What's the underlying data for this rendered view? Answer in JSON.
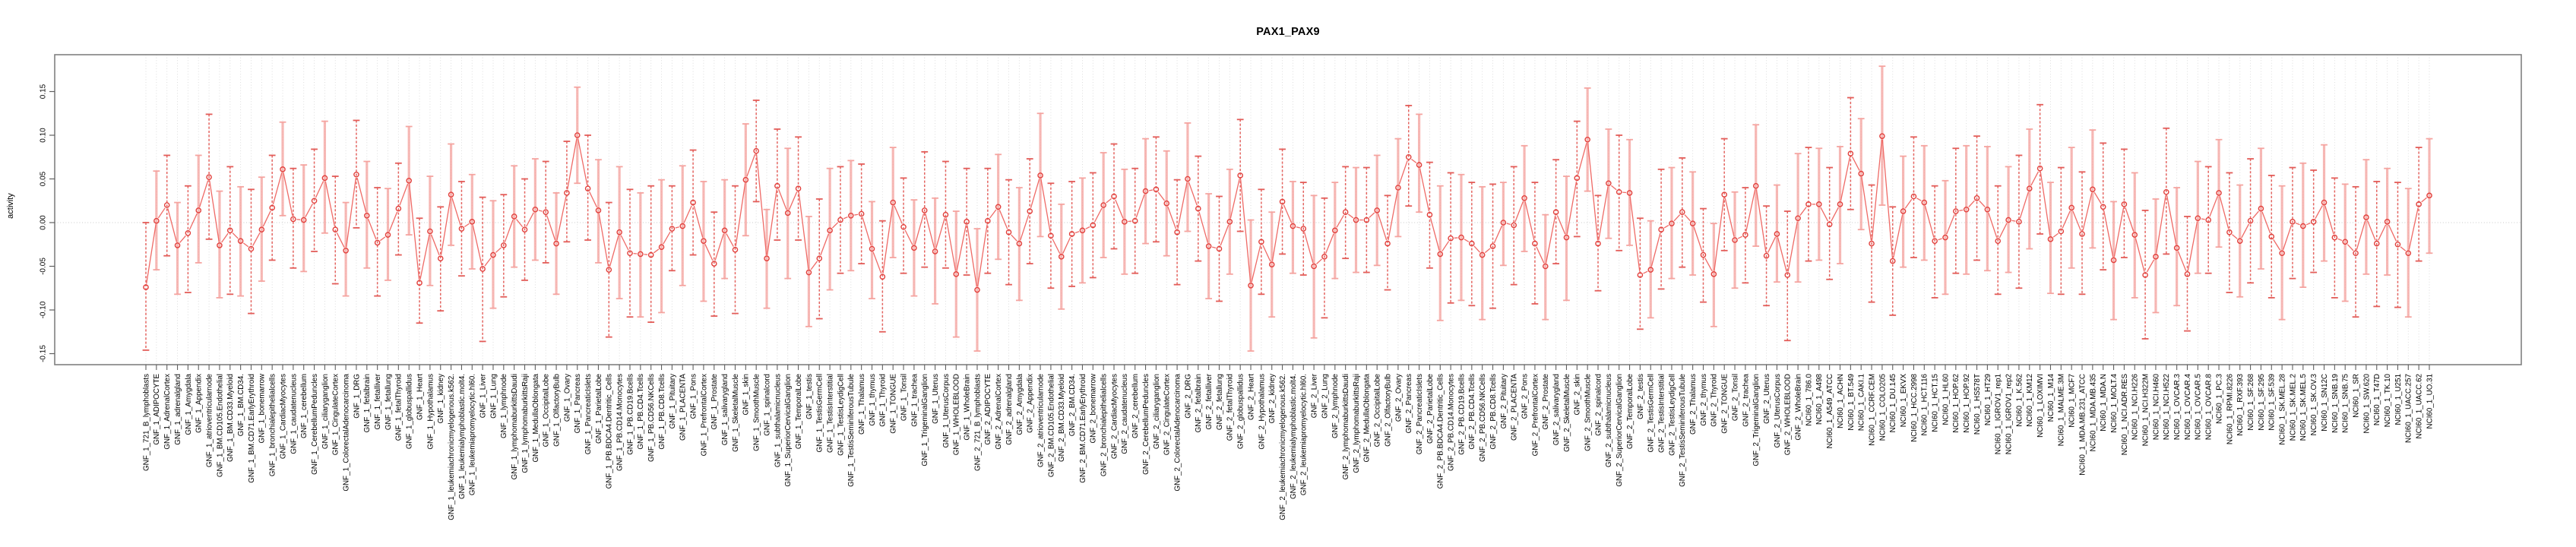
{
  "title": "PAX1_PAX9",
  "axis": {
    "ylabel": "activity",
    "yticks": [
      "0.15",
      "0.10",
      "0.05",
      "0.00",
      "-0.05",
      "-0.10",
      "-0.15"
    ],
    "ytick_values": [
      0.15,
      0.1,
      0.05,
      0.0,
      -0.05,
      -0.1,
      -0.15
    ]
  },
  "colors": {
    "point": "#e2403c",
    "line": "#ef6a66",
    "errorbar_light": "#f4a09c",
    "errorbar_dashed": "#e25450",
    "grid": "#d9d9d9",
    "zero_line": "#c9c9c9",
    "box": "#808080",
    "tick": "#606060",
    "text": "#000000"
  },
  "chart_data": {
    "type": "line",
    "subtype": "errorbar-series",
    "title": "PAX1_PAX9",
    "xlabel": "",
    "ylabel": "activity",
    "ylim": [
      -0.163,
      0.192
    ],
    "yticks": [
      -0.15,
      -0.1,
      -0.05,
      0.0,
      0.05,
      0.1,
      0.15
    ],
    "grid": "vertical dotted gridline per category; horizontal dotted line at y=0",
    "legend": "none",
    "point_style": "open-circle",
    "error_bars": true,
    "categories": [
      "GNF_1_721_B_lymphoblasts",
      "GNF_1_ADIPOCYTE",
      "GNF_1_AdrenalCortex",
      "GNF_1_adrenalgland",
      "GNF_1_Amygdala",
      "GNF_1_Appendix",
      "GNF_1_atrioventricularnode",
      "GNF_1_BM.CD105.Endothelial",
      "GNF_1_BM.CD33.Myeloid",
      "GNF_1_BM.CD34.",
      "GNF_1_BM.CD71.EarlyErythroid",
      "GNF_1_bonemarrow",
      "GNF_1_bronchialepithelialcells",
      "GNF_1_CardiacMyocytes",
      "GNF_1_caudatenucleus",
      "GNF_1_cerebellum",
      "GNF_1_CerebellumPeduncles",
      "GNF_1_ciliaryganglion",
      "GNF_1_CingulateCortex",
      "GNF_1_ColorectalAdenocarcinoma",
      "GNF_1_DRG",
      "GNF_1_fetalbrain",
      "GNF_1_fetalliver",
      "GNF_1_fetallung",
      "GNF_1_fetalThyroid",
      "GNF_1_globuspallidus",
      "GNF_1_Heart",
      "GNF_1_Hypothalamus",
      "GNF_1_kidney",
      "GNF_1_leukemiachronicmyelogenous.k562.",
      "GNF_1_leukemialymphoblastic.molt4.",
      "GNF_1_leukemiapromyelocytic.hl60.",
      "GNF_1_Liver",
      "GNF_1_Lung",
      "GNF_1_lymphnode",
      "GNF_1_lymphomaburkittsDaudi",
      "GNF_1_lymphomaburkittsRaji",
      "GNF_1_MedullaOblongata",
      "GNF_1_OccipitalLobe",
      "GNF_1_OlfactoryBulb",
      "GNF_1_Ovary",
      "GNF_1_Pancreas",
      "GNF_1_PancreaticIslets",
      "GNF_1_ParietalLobe",
      "GNF_1_PB.BDCA4.Dentritic_Cells",
      "GNF_1_PB.CD14.Monocytes",
      "GNF_1_PB.CD19.Bcells",
      "GNF_1_PB.CD4.Tcells",
      "GNF_1_PB.CD56.NKCells",
      "GNF_1_PB.CD8.Tcells",
      "GNF_1_Pituitary",
      "GNF_1_PLACENTA",
      "GNF_1_Pons",
      "GNF_1_PrefrontalCortex",
      "GNF_1_Prostate",
      "GNF_1_salivarygland",
      "GNF_1_SkeletalMuscle",
      "GNF_1_skin",
      "GNF_1_SmoothMuscle",
      "GNF_1_spinalcord",
      "GNF_1_subthalamicnucleus",
      "GNF_1_SuperiorCervicalGanglion",
      "GNF_1_TemporalLobe",
      "GNF_1_testis",
      "GNF_1_TestisGermCell",
      "GNF_1_TestisInterstitial",
      "GNF_1_TestisLeydigCell",
      "GNF_1_TestisSeminiferousTubule",
      "GNF_1_Thalamus",
      "GNF_1_thymus",
      "GNF_1_Thyroid",
      "GNF_1_TONGUE",
      "GNF_1_Tonsil",
      "GNF_1_trachea",
      "GNF_1_TrigeminalGanglion",
      "GNF_1_Uterus",
      "GNF_1_UterusCorpus",
      "GNF_1_WHOLEBLOOD",
      "GNF_1_WholeBrain",
      "GNF_2_721_B_lymphoblasts",
      "GNF_2_ADIPOCYTE",
      "GNF_2_AdrenalCortex",
      "GNF_2_adrenalgland",
      "GNF_2_Amygdala",
      "GNF_2_Appendix",
      "GNF_2_atrioventricularnode",
      "GNF_2_BM.CD105.Endothelial",
      "GNF_2_BM.CD33.Myeloid",
      "GNF_2_BM.CD34.",
      "GNF_2_BM.CD71.EarlyErythroid",
      "GNF_2_bonemarrow",
      "GNF_2_bronchialepithelialcells",
      "GNF_2_CardiacMyocytes",
      "GNF_2_caudatenucleus",
      "GNF_2_cerebellum",
      "GNF_2_CerebellumPeduncles",
      "GNF_2_ciliaryganglion",
      "GNF_2_CingulateCortex",
      "GNF_2_ColorectalAdenocarcinoma",
      "GNF_2_DRG",
      "GNF_2_fetalbrain",
      "GNF_2_fetalliver",
      "GNF_2_fetallung",
      "GNF_2_fetalThyroid",
      "GNF_2_globuspallidus",
      "GNF_2_Heart",
      "GNF_2_Hypothalamus",
      "GNF_2_kidney",
      "GNF_2_leukemiachronicmyelogenous.k562.",
      "GNF_2_leukemialymphoblastic.molt4.",
      "GNF_2_leukemiapromyelocytic.hl60.",
      "GNF_2_Liver",
      "GNF_2_Lung",
      "GNF_2_lymphnode",
      "GNF_2_lymphomaburkittsDaudi",
      "GNF_2_lymphomaburkittsRaji",
      "GNF_2_MedullaOblongata",
      "GNF_2_OccipitalLobe",
      "GNF_2_OlfactoryBulb",
      "GNF_2_Ovary",
      "GNF_2_Pancreas",
      "GNF_2_PancreaticIslets",
      "GNF_2_ParietalLobe",
      "GNF_2_PB.BDCA4.Dentritic_Cells",
      "GNF_2_PB.CD14.Monocytes",
      "GNF_2_PB.CD19.Bcells",
      "GNF_2_PB.CD4.Tcells",
      "GNF_2_PB.CD56.NKCells",
      "GNF_2_PB.CD8.Tcells",
      "GNF_2_Pituitary",
      "GNF_2_PLACENTA",
      "GNF_2_Pons",
      "GNF_2_PrefrontalCortex",
      "GNF_2_Prostate",
      "GNF_2_salivarygland",
      "GNF_2_SkeletalMuscle",
      "GNF_2_skin",
      "GNF_2_SmoothMuscle",
      "GNF_2_spinalcord",
      "GNF_2_subthalamicnucleus",
      "GNF_2_SuperiorCervicalGanglion",
      "GNF_2_TemporalLobe",
      "GNF_2_testis",
      "GNF_2_TestisGermCell",
      "GNF_2_TestisInterstitial",
      "GNF_2_TestisLeydigCell",
      "GNF_2_TestisSeminiferousTubule",
      "GNF_2_Thalamus",
      "GNF_2_thymus",
      "GNF_2_Thyroid",
      "GNF_2_TONGUE",
      "GNF_2_Tonsil",
      "GNF_2_trachea",
      "GNF_2_TrigeminalGanglion",
      "GNF_2_Uterus",
      "GNF_2_UterusCorpus",
      "GNF_2_WHOLEBLOOD",
      "GNF_2_WholeBrain",
      "NCI60_1_786.0",
      "NCI60_1_A498",
      "NCI60_1_A549_ATCC",
      "NCI60_1_ACHN",
      "NCI60_1_BT.549",
      "NCI60_1_CAKI.1",
      "NCI60_1_CCRF.CEM",
      "NCI60_1_COLO205",
      "NCI60_1_DU.145",
      "NCI60_1_EKVX",
      "NCI60_1_HCC.2998",
      "NCI60_1_HCT.116",
      "NCI60_1_HCT.15",
      "NCI60_1_HL60",
      "NCI60_1_HOP.62",
      "NCI60_1_HOP.92",
      "NCI60_1_HS578T",
      "NCI60_1_HT29",
      "NCI60_1_IGROV1_rep1",
      "NCI60_1_IGROV1_rep2",
      "NCI60_1_K.562",
      "NCI60_1_KM12",
      "NCI60_1_LOXIMVI",
      "NCI60_1_M14",
      "NCI60_1_MALME.3M",
      "NCI60_1_MCF7",
      "NCI60_1_MDA.MB.231_ATCC",
      "NCI60_1_MDA.MB.435",
      "NCI60_1_MDA.N",
      "NCI60_1_MOLT.4",
      "NCI60_1_NCI.ADR.RES",
      "NCI60_1_NCI.H226",
      "NCI60_1_NCI.H322M",
      "NCI60_1_NCI.H460",
      "NCI60_1_NCI.H522",
      "NCI60_1_OVCAR.3",
      "NCI60_1_OVCAR.4",
      "NCI60_1_OVCAR.5",
      "NCI60_1_OVCAR.8",
      "NCI60_1_PC.3",
      "NCI60_1_RPMI.8226",
      "NCI60_1_RXF.393",
      "NCI60_1_SF.268",
      "NCI60_1_SF.295",
      "NCI60_1_SF.539",
      "NCI60_1_SK.MEL.28",
      "NCI60_1_SK.MEL.2",
      "NCI60_1_SK.MEL.5",
      "NCI60_1_SK.OV.3",
      "NCI60_1_SN12C",
      "NCI60_1_SNB.19",
      "NCI60_1_SNB.75",
      "NCI60_1_SR",
      "NCI60_1_SW.620",
      "NCI60_1_T47D",
      "NCI60_1_TK.10",
      "NCI60_1_U251",
      "NCI60_1_UACC.257",
      "NCI60_1_UACC.62",
      "NCI60_1_UO.31"
    ],
    "values": [
      -0.074,
      0.002,
      0.02,
      -0.026,
      -0.012,
      0.014,
      0.052,
      -0.026,
      -0.009,
      -0.021,
      -0.03,
      -0.008,
      0.017,
      0.061,
      0.004,
      0.003,
      0.025,
      0.051,
      -0.008,
      -0.032,
      0.055,
      0.008,
      -0.023,
      -0.014,
      0.016,
      0.048,
      -0.069,
      -0.01,
      -0.041,
      0.032,
      -0.007,
      0.001,
      -0.053,
      -0.037,
      -0.026,
      0.007,
      -0.008,
      0.015,
      0.012,
      -0.024,
      0.034,
      0.1,
      0.039,
      0.014,
      -0.054,
      -0.011,
      -0.035,
      -0.036,
      -0.037,
      -0.028,
      -0.007,
      -0.004,
      0.023,
      -0.021,
      -0.047,
      -0.009,
      -0.031,
      0.049,
      0.082,
      -0.041,
      0.042,
      0.011,
      0.039,
      -0.057,
      -0.041,
      -0.009,
      0.003,
      0.008,
      0.01,
      -0.03,
      -0.062,
      0.023,
      -0.005,
      -0.029,
      0.014,
      -0.033,
      0.009,
      -0.059,
      0.001,
      -0.077,
      0.002,
      0.018,
      -0.011,
      -0.024,
      0.013,
      0.054,
      -0.015,
      -0.039,
      -0.013,
      -0.009,
      -0.003,
      0.02,
      0.03,
      0.001,
      0.002,
      0.036,
      0.038,
      0.022,
      -0.011,
      0.05,
      0.016,
      -0.027,
      -0.03,
      0.001,
      0.054,
      -0.072,
      -0.022,
      -0.048,
      0.024,
      -0.004,
      -0.007,
      -0.05,
      -0.039,
      -0.009,
      0.012,
      0.003,
      0.003,
      0.014,
      -0.024,
      0.04,
      0.075,
      0.066,
      0.009,
      -0.036,
      -0.018,
      -0.017,
      -0.024,
      -0.037,
      -0.027,
      0.0,
      -0.003,
      0.028,
      -0.024,
      -0.05,
      0.012,
      -0.017,
      0.051,
      0.095,
      -0.024,
      0.045,
      0.035,
      0.034,
      -0.06,
      -0.054,
      -0.008,
      -0.001,
      0.012,
      -0.001,
      -0.037,
      -0.059,
      0.032,
      -0.02,
      -0.014,
      0.042,
      -0.038,
      -0.013,
      -0.06,
      0.005,
      0.021,
      0.021,
      -0.002,
      0.021,
      0.079,
      0.056,
      -0.024,
      0.099,
      -0.044,
      0.013,
      0.03,
      0.023,
      -0.021,
      -0.017,
      0.013,
      0.015,
      0.028,
      0.015,
      -0.021,
      0.003,
      0.001,
      0.039,
      0.062,
      -0.019,
      -0.01,
      0.017,
      -0.013,
      0.038,
      0.018,
      -0.043,
      0.021,
      -0.014,
      -0.06,
      -0.039,
      0.035,
      -0.029,
      -0.059,
      0.005,
      0.003,
      0.034,
      -0.011,
      -0.021,
      0.002,
      0.016,
      -0.016,
      -0.035,
      0.001,
      -0.004,
      0.001,
      0.023,
      -0.017,
      -0.022,
      -0.035,
      0.006,
      -0.024,
      0.001,
      -0.025,
      -0.035,
      0.021,
      0.031
    ],
    "error_low": [
      -0.146,
      -0.054,
      -0.038,
      -0.082,
      -0.08,
      -0.046,
      -0.019,
      -0.086,
      -0.082,
      -0.084,
      -0.104,
      -0.067,
      -0.043,
      0.008,
      -0.052,
      -0.056,
      -0.033,
      -0.012,
      -0.07,
      -0.084,
      -0.006,
      -0.052,
      -0.084,
      -0.066,
      -0.037,
      -0.014,
      -0.115,
      -0.072,
      -0.101,
      -0.026,
      -0.061,
      -0.053,
      -0.136,
      -0.098,
      -0.085,
      -0.051,
      -0.066,
      -0.043,
      -0.046,
      -0.082,
      -0.022,
      0.045,
      -0.02,
      -0.046,
      -0.131,
      -0.087,
      -0.108,
      -0.108,
      -0.114,
      -0.103,
      -0.055,
      -0.072,
      -0.037,
      -0.09,
      -0.107,
      -0.064,
      -0.104,
      -0.015,
      0.024,
      -0.098,
      -0.02,
      -0.064,
      -0.02,
      -0.119,
      -0.11,
      -0.077,
      -0.058,
      -0.055,
      -0.047,
      -0.087,
      -0.125,
      -0.04,
      -0.058,
      -0.084,
      -0.051,
      -0.093,
      -0.052,
      -0.131,
      -0.06,
      -0.147,
      -0.058,
      -0.042,
      -0.071,
      -0.089,
      -0.047,
      -0.016,
      -0.075,
      -0.099,
      -0.073,
      -0.069,
      -0.063,
      -0.04,
      -0.03,
      -0.059,
      -0.058,
      -0.024,
      -0.022,
      -0.038,
      -0.071,
      -0.01,
      -0.044,
      -0.087,
      -0.09,
      -0.059,
      -0.01,
      -0.147,
      -0.082,
      -0.108,
      -0.036,
      -0.058,
      -0.06,
      -0.132,
      -0.109,
      -0.064,
      -0.041,
      -0.057,
      -0.057,
      -0.049,
      -0.077,
      -0.016,
      0.019,
      0.012,
      -0.052,
      -0.112,
      -0.092,
      -0.089,
      -0.095,
      -0.111,
      -0.098,
      -0.049,
      -0.071,
      -0.033,
      -0.093,
      -0.111,
      -0.047,
      -0.089,
      -0.016,
      0.036,
      -0.078,
      -0.018,
      -0.032,
      -0.026,
      -0.122,
      -0.109,
      -0.076,
      -0.064,
      -0.051,
      -0.06,
      -0.091,
      -0.119,
      -0.032,
      -0.075,
      -0.069,
      -0.027,
      -0.095,
      -0.068,
      -0.135,
      -0.068,
      -0.044,
      -0.043,
      -0.065,
      -0.047,
      0.015,
      -0.008,
      -0.091,
      0.02,
      -0.106,
      -0.051,
      -0.04,
      -0.043,
      -0.086,
      -0.082,
      -0.058,
      -0.059,
      -0.043,
      -0.055,
      -0.082,
      -0.057,
      -0.075,
      -0.03,
      -0.013,
      -0.081,
      -0.082,
      -0.052,
      -0.082,
      -0.029,
      -0.054,
      -0.111,
      -0.04,
      -0.086,
      -0.133,
      -0.103,
      -0.036,
      -0.095,
      -0.124,
      -0.058,
      -0.058,
      -0.028,
      -0.08,
      -0.085,
      -0.069,
      -0.053,
      -0.086,
      -0.111,
      -0.064,
      -0.074,
      -0.057,
      -0.044,
      -0.086,
      -0.09,
      -0.108,
      -0.059,
      -0.096,
      -0.06,
      -0.097,
      -0.108,
      -0.044,
      -0.035
    ],
    "error_high": [
      0.0,
      0.059,
      0.077,
      0.023,
      0.042,
      0.077,
      0.124,
      0.036,
      0.064,
      0.041,
      0.038,
      0.052,
      0.077,
      0.115,
      0.062,
      0.066,
      0.084,
      0.116,
      0.053,
      0.023,
      0.117,
      0.07,
      0.04,
      0.039,
      0.068,
      0.11,
      0.005,
      0.053,
      0.018,
      0.09,
      0.047,
      0.055,
      0.029,
      0.025,
      0.032,
      0.065,
      0.05,
      0.073,
      0.07,
      0.034,
      0.093,
      0.155,
      0.1,
      0.072,
      0.023,
      0.064,
      0.038,
      0.034,
      0.042,
      0.049,
      0.042,
      0.065,
      0.083,
      0.047,
      0.012,
      0.049,
      0.042,
      0.113,
      0.14,
      0.015,
      0.107,
      0.085,
      0.098,
      0.007,
      0.027,
      0.062,
      0.064,
      0.071,
      0.067,
      0.024,
      0.002,
      0.086,
      0.051,
      0.026,
      0.081,
      0.028,
      0.07,
      0.013,
      0.062,
      -0.007,
      0.062,
      0.078,
      0.049,
      0.04,
      0.073,
      0.125,
      0.045,
      0.021,
      0.047,
      0.051,
      0.057,
      0.08,
      0.09,
      0.061,
      0.062,
      0.096,
      0.098,
      0.082,
      0.049,
      0.114,
      0.076,
      0.033,
      0.03,
      0.061,
      0.118,
      0.003,
      0.038,
      0.012,
      0.084,
      0.047,
      0.046,
      0.031,
      0.028,
      0.046,
      0.064,
      0.063,
      0.063,
      0.077,
      0.031,
      0.096,
      0.134,
      0.124,
      0.069,
      0.042,
      0.057,
      0.055,
      0.046,
      0.041,
      0.044,
      0.046,
      0.064,
      0.088,
      0.046,
      0.009,
      0.072,
      0.053,
      0.116,
      0.154,
      0.031,
      0.107,
      0.1,
      0.095,
      0.005,
      0.002,
      0.061,
      0.063,
      0.074,
      0.058,
      0.016,
      -0.001,
      0.096,
      0.035,
      0.04,
      0.112,
      0.019,
      0.043,
      0.013,
      0.079,
      0.086,
      0.085,
      0.063,
      0.087,
      0.143,
      0.119,
      0.043,
      0.179,
      0.018,
      0.076,
      0.098,
      0.088,
      0.042,
      0.048,
      0.085,
      0.088,
      0.099,
      0.087,
      0.042,
      0.064,
      0.077,
      0.107,
      0.135,
      0.046,
      0.063,
      0.086,
      0.058,
      0.106,
      0.091,
      0.024,
      0.084,
      0.057,
      0.014,
      0.027,
      0.108,
      0.04,
      0.007,
      0.07,
      0.064,
      0.095,
      0.057,
      0.043,
      0.073,
      0.085,
      0.054,
      0.042,
      0.063,
      0.068,
      0.06,
      0.089,
      0.051,
      0.044,
      0.041,
      0.072,
      0.047,
      0.062,
      0.046,
      0.039,
      0.086,
      0.096
    ]
  }
}
